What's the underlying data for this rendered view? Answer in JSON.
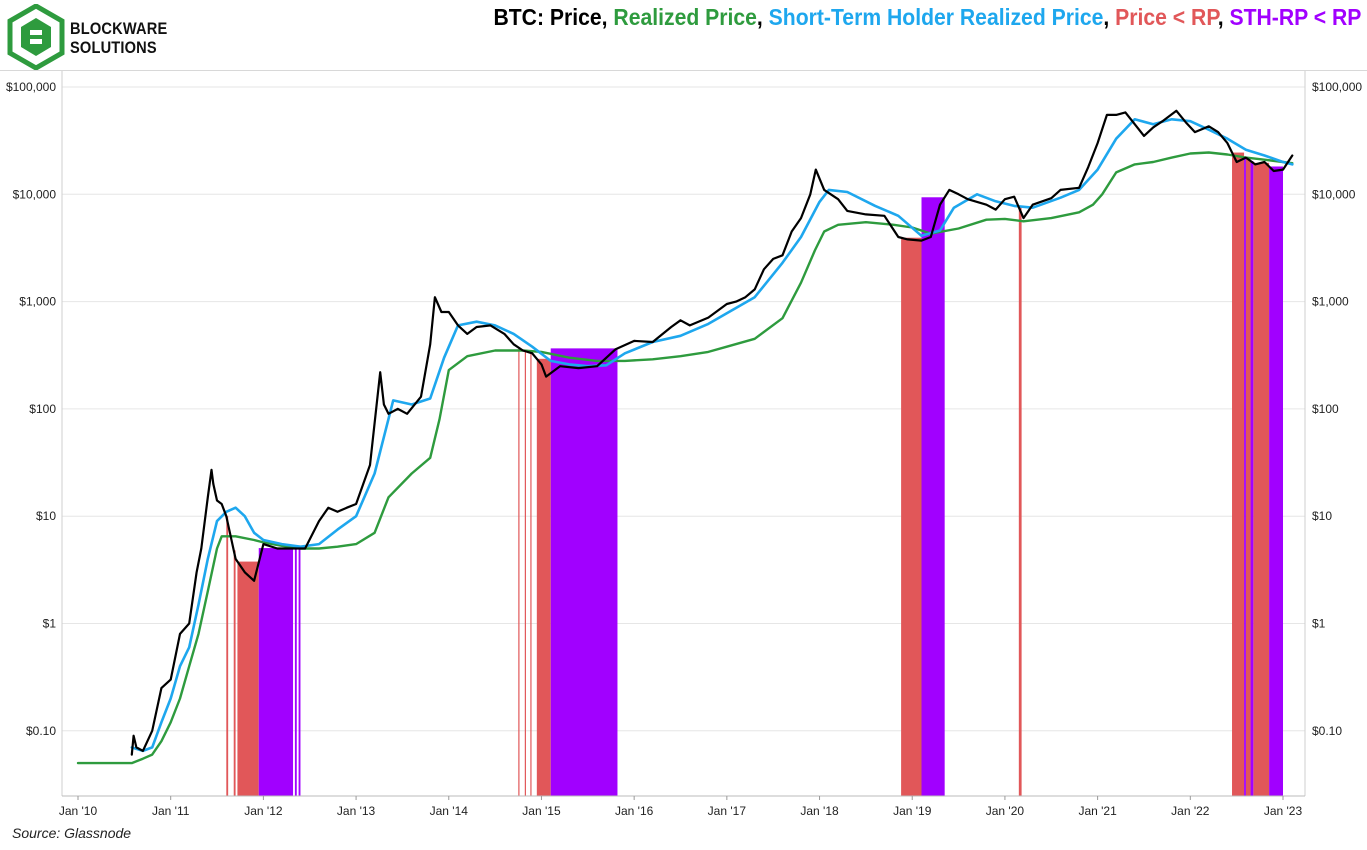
{
  "logo": {
    "line1": "BLOCKWARE",
    "line2": "SOLUTIONS",
    "brand_color": "#2e9b3e"
  },
  "title_parts": [
    {
      "text": "BTC: Price",
      "color": "#000000"
    },
    {
      "text": ", ",
      "color": "#000000"
    },
    {
      "text": "Realized Price",
      "color": "#2e9b3e"
    },
    {
      "text": ", ",
      "color": "#000000"
    },
    {
      "text": "Short-Term Holder Realized Price",
      "color": "#1ea7ee"
    },
    {
      "text": ", ",
      "color": "#000000"
    },
    {
      "text": "Price < RP",
      "color": "#e15759"
    },
    {
      "text": ", ",
      "color": "#000000"
    },
    {
      "text": "STH-RP < RP",
      "color": "#a100ff"
    }
  ],
  "source": "Source: Glassnode",
  "chart_data": {
    "type": "line",
    "scale": "log",
    "ylim": [
      0.03,
      100000
    ],
    "xlim": [
      2010.0,
      2023.2
    ],
    "y_ticks": [
      {
        "value": 0.1,
        "label": "$0.10"
      },
      {
        "value": 1,
        "label": "$1"
      },
      {
        "value": 10,
        "label": "$10"
      },
      {
        "value": 100,
        "label": "$100"
      },
      {
        "value": 1000,
        "label": "$1,000"
      },
      {
        "value": 10000,
        "label": "$10,000"
      },
      {
        "value": 100000,
        "label": "$100,000"
      }
    ],
    "x_ticks": [
      {
        "value": 2010,
        "label": "Jan '10"
      },
      {
        "value": 2011,
        "label": "Jan '11"
      },
      {
        "value": 2012,
        "label": "Jan '12"
      },
      {
        "value": 2013,
        "label": "Jan '13"
      },
      {
        "value": 2014,
        "label": "Jan '14"
      },
      {
        "value": 2015,
        "label": "Jan '15"
      },
      {
        "value": 2016,
        "label": "Jan '16"
      },
      {
        "value": 2017,
        "label": "Jan '17"
      },
      {
        "value": 2018,
        "label": "Jan '18"
      },
      {
        "value": 2019,
        "label": "Jan '19"
      },
      {
        "value": 2020,
        "label": "Jan '20"
      },
      {
        "value": 2021,
        "label": "Jan '21"
      },
      {
        "value": 2022,
        "label": "Jan '22"
      },
      {
        "value": 2023,
        "label": "Jan '23"
      }
    ],
    "grid": true,
    "colors": {
      "price": "#000000",
      "rp": "#2e9b3e",
      "sth": "#1ea7ee",
      "price_below_rp": "#e15759",
      "sth_below_rp": "#a100ff"
    },
    "series": [
      {
        "key": "price",
        "x": [
          2010.58,
          2010.6,
          2010.63,
          2010.7,
          2010.8,
          2010.9,
          2011.0,
          2011.1,
          2011.2,
          2011.28,
          2011.33,
          2011.4,
          2011.44,
          2011.46,
          2011.5,
          2011.55,
          2011.6,
          2011.7,
          2011.8,
          2011.9,
          2012.0,
          2012.15,
          2012.3,
          2012.45,
          2012.6,
          2012.7,
          2012.8,
          2012.9,
          2013.0,
          2013.15,
          2013.26,
          2013.3,
          2013.35,
          2013.45,
          2013.55,
          2013.7,
          2013.8,
          2013.85,
          2013.92,
          2014.0,
          2014.1,
          2014.2,
          2014.3,
          2014.45,
          2014.6,
          2014.7,
          2014.8,
          2014.9,
          2015.0,
          2015.05,
          2015.2,
          2015.4,
          2015.6,
          2015.8,
          2016.0,
          2016.2,
          2016.4,
          2016.5,
          2016.6,
          2016.8,
          2017.0,
          2017.1,
          2017.2,
          2017.3,
          2017.4,
          2017.5,
          2017.6,
          2017.7,
          2017.8,
          2017.9,
          2017.96,
          2018.05,
          2018.2,
          2018.3,
          2018.5,
          2018.7,
          2018.85,
          2018.95,
          2019.1,
          2019.2,
          2019.3,
          2019.4,
          2019.5,
          2019.6,
          2019.8,
          2019.9,
          2020.0,
          2020.1,
          2020.2,
          2020.3,
          2020.5,
          2020.6,
          2020.8,
          2020.9,
          2021.0,
          2021.1,
          2021.2,
          2021.3,
          2021.5,
          2021.6,
          2021.7,
          2021.85,
          2021.95,
          2022.05,
          2022.2,
          2022.3,
          2022.4,
          2022.5,
          2022.6,
          2022.7,
          2022.8,
          2022.9,
          2023.0,
          2023.1
        ],
        "y": [
          0.06,
          0.09,
          0.07,
          0.065,
          0.1,
          0.25,
          0.3,
          0.8,
          1.0,
          3.0,
          5.0,
          15.0,
          27.0,
          20.0,
          14.0,
          13.0,
          10.0,
          4.0,
          3.0,
          2.5,
          5.5,
          5.0,
          5.0,
          5.0,
          9.0,
          12.0,
          11.0,
          12.0,
          13.0,
          30.0,
          220.0,
          110.0,
          90.0,
          100.0,
          90.0,
          130.0,
          400.0,
          1100.0,
          800.0,
          800.0,
          600.0,
          500.0,
          580.0,
          600.0,
          500.0,
          400.0,
          350.0,
          330.0,
          260.0,
          200.0,
          250.0,
          240.0,
          250.0,
          360.0,
          430.0,
          420.0,
          580.0,
          670.0,
          600.0,
          710.0,
          950.0,
          1000.0,
          1100.0,
          1300.0,
          2000.0,
          2500.0,
          2700.0,
          4500.0,
          6000.0,
          10000.0,
          17000.0,
          11000.0,
          9000.0,
          7000.0,
          6500.0,
          6300.0,
          4000.0,
          3800.0,
          3700.0,
          4000.0,
          8000.0,
          11000.0,
          10000.0,
          9000.0,
          8000.0,
          7200.0,
          9000.0,
          9500.0,
          6000.0,
          8000.0,
          9200.0,
          11000.0,
          11500.0,
          18000.0,
          30000.0,
          55000.0,
          55000.0,
          58000.0,
          35000.0,
          42000.0,
          48000.0,
          60000.0,
          47000.0,
          38000.0,
          43000.0,
          38000.0,
          30000.0,
          20000.0,
          22000.0,
          19000.0,
          20000.0,
          16500.0,
          17000.0,
          23000.0
        ]
      },
      {
        "key": "sth",
        "x": [
          2010.58,
          2010.7,
          2010.8,
          2010.9,
          2011.0,
          2011.1,
          2011.2,
          2011.3,
          2011.4,
          2011.5,
          2011.6,
          2011.7,
          2011.8,
          2011.9,
          2012.0,
          2012.2,
          2012.4,
          2012.6,
          2012.8,
          2013.0,
          2013.2,
          2013.4,
          2013.6,
          2013.8,
          2013.95,
          2014.1,
          2014.3,
          2014.5,
          2014.7,
          2014.9,
          2015.1,
          2015.3,
          2015.5,
          2015.7,
          2015.9,
          2016.2,
          2016.5,
          2016.8,
          2017.0,
          2017.3,
          2017.6,
          2017.8,
          2018.0,
          2018.1,
          2018.3,
          2018.6,
          2018.85,
          2019.1,
          2019.3,
          2019.45,
          2019.7,
          2019.9,
          2020.1,
          2020.3,
          2020.6,
          2020.8,
          2021.0,
          2021.2,
          2021.4,
          2021.6,
          2021.8,
          2022.0,
          2022.2,
          2022.4,
          2022.6,
          2022.8,
          2023.0,
          2023.1
        ],
        "y": [
          0.07,
          0.065,
          0.07,
          0.12,
          0.2,
          0.4,
          0.6,
          1.5,
          4.0,
          9.0,
          11.0,
          12.0,
          10.0,
          7.0,
          6.0,
          5.5,
          5.2,
          5.5,
          7.5,
          10.0,
          25.0,
          120.0,
          110.0,
          125.0,
          300.0,
          600.0,
          650.0,
          600.0,
          500.0,
          380.0,
          280.0,
          260.0,
          250.0,
          255.0,
          330.0,
          420.0,
          480.0,
          620.0,
          780.0,
          1100.0,
          2300.0,
          4000.0,
          8500.0,
          11000.0,
          10500.0,
          7800.0,
          6300.0,
          4100.0,
          4600.0,
          7500.0,
          10000.0,
          8600.0,
          7800.0,
          7500.0,
          9300.0,
          11000.0,
          17000.0,
          33000.0,
          50000.0,
          45000.0,
          50000.0,
          48000.0,
          40000.0,
          33000.0,
          26000.0,
          23000.0,
          20000.0,
          19000.0
        ]
      },
      {
        "key": "rp",
        "x": [
          2010.0,
          2010.58,
          2010.7,
          2010.8,
          2010.9,
          2011.0,
          2011.1,
          2011.2,
          2011.3,
          2011.4,
          2011.5,
          2011.55,
          2011.7,
          2011.9,
          2012.0,
          2012.2,
          2012.4,
          2012.6,
          2012.8,
          2013.0,
          2013.2,
          2013.35,
          2013.6,
          2013.8,
          2013.9,
          2014.0,
          2014.2,
          2014.5,
          2014.8,
          2015.0,
          2015.3,
          2015.6,
          2015.9,
          2016.2,
          2016.5,
          2016.8,
          2017.0,
          2017.3,
          2017.6,
          2017.8,
          2017.95,
          2018.05,
          2018.2,
          2018.5,
          2018.8,
          2019.0,
          2019.2,
          2019.5,
          2019.8,
          2020.0,
          2020.2,
          2020.5,
          2020.8,
          2020.95,
          2021.05,
          2021.2,
          2021.4,
          2021.6,
          2021.8,
          2022.0,
          2022.2,
          2022.4,
          2022.6,
          2022.8,
          2023.0,
          2023.1
        ],
        "y": [
          0.05,
          0.05,
          0.055,
          0.06,
          0.08,
          0.12,
          0.2,
          0.4,
          0.8,
          2.0,
          5.0,
          6.5,
          6.5,
          6.0,
          5.7,
          5.3,
          5.0,
          5.0,
          5.2,
          5.5,
          7.0,
          15.0,
          25.0,
          35.0,
          80.0,
          230.0,
          310.0,
          350.0,
          350.0,
          340.0,
          300.0,
          280.0,
          280.0,
          290.0,
          310.0,
          340.0,
          380.0,
          450.0,
          700.0,
          1500.0,
          3000.0,
          4500.0,
          5200.0,
          5500.0,
          5200.0,
          4900.0,
          4300.0,
          4800.0,
          5800.0,
          5900.0,
          5600.0,
          6000.0,
          6800.0,
          8000.0,
          10000.0,
          16000.0,
          19000.0,
          20000.0,
          22000.0,
          24000.0,
          24500.0,
          23500.0,
          22000.0,
          21000.0,
          20000.0,
          19500.0
        ]
      }
    ],
    "bands_price_below_rp": [
      [
        2011.6,
        2011.62
      ],
      [
        2011.68,
        2011.7
      ],
      [
        2011.72,
        2011.95
      ],
      [
        2014.75,
        2014.76
      ],
      [
        2014.82,
        2014.83
      ],
      [
        2014.88,
        2014.89
      ],
      [
        2014.95,
        2015.1
      ],
      [
        2018.88,
        2019.1
      ],
      [
        2020.15,
        2020.18
      ],
      [
        2022.45,
        2022.58
      ],
      [
        2022.6,
        2022.65
      ],
      [
        2022.68,
        2022.85
      ]
    ],
    "bands_sth_below_rp": [
      [
        2011.95,
        2012.32
      ],
      [
        2012.34,
        2012.36
      ],
      [
        2012.38,
        2012.4
      ],
      [
        2015.1,
        2015.82
      ],
      [
        2019.1,
        2019.35
      ],
      [
        2022.58,
        2022.6
      ],
      [
        2022.65,
        2022.68
      ],
      [
        2022.85,
        2023.0
      ]
    ]
  }
}
